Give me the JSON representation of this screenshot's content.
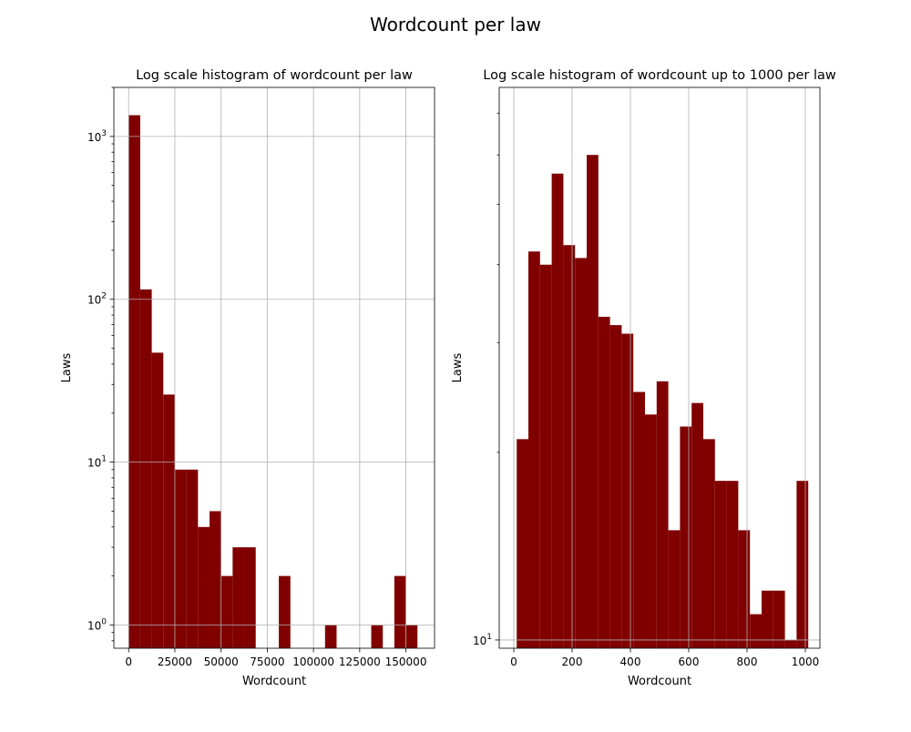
{
  "figure": {
    "title": "Wordcount per law"
  },
  "chart_data": [
    {
      "type": "bar",
      "title": "Log scale histogram of wordcount per law",
      "xlabel": "Wordcount",
      "ylabel": "Laws",
      "yscale": "log",
      "grid": true,
      "xlim": [
        -8000,
        165500
      ],
      "ylim": [
        0.72,
        2000
      ],
      "xticks": [
        0,
        25000,
        50000,
        75000,
        100000,
        125000,
        150000
      ],
      "xtick_labels": [
        "0",
        "25000",
        "50000",
        "75000",
        "100000",
        "125000",
        "150000"
      ],
      "yticks": [
        1,
        10,
        100,
        1000
      ],
      "ytick_labels": [
        "10^0",
        "10^1",
        "10^2",
        "10^3"
      ],
      "bin_edges": [
        0,
        6250,
        12500,
        18750,
        25000,
        31250,
        37500,
        43750,
        50000,
        56250,
        62500,
        68750,
        75000,
        81250,
        87500,
        93750,
        100000,
        106250,
        112500,
        118750,
        125000,
        131250,
        137500,
        143750,
        150000,
        156250
      ],
      "counts": [
        1350,
        115,
        47,
        26,
        9,
        9,
        4,
        5,
        2,
        3,
        3,
        0,
        0,
        2,
        0,
        0,
        0,
        1,
        0,
        0,
        0,
        1,
        0,
        2,
        1
      ]
    },
    {
      "type": "bar",
      "title": "Log scale histogram of wordcount up to 1000 per law",
      "xlabel": "Wordcount",
      "ylabel": "Laws",
      "yscale": "log",
      "grid": true,
      "xlim": [
        -50,
        1050
      ],
      "ylim": [
        9.7,
        77
      ],
      "xticks": [
        0,
        200,
        400,
        600,
        800,
        1000
      ],
      "xtick_labels": [
        "0",
        "200",
        "400",
        "600",
        "800",
        "1000"
      ],
      "yticks": [
        10
      ],
      "ytick_labels": [
        "10^1"
      ],
      "bin_edges": [
        10,
        50,
        90,
        130,
        170,
        210,
        250,
        290,
        330,
        370,
        410,
        450,
        490,
        530,
        570,
        610,
        650,
        690,
        730,
        770,
        810,
        850,
        890,
        930,
        970,
        1010
      ],
      "counts": [
        21,
        42,
        40,
        56,
        43,
        41,
        60,
        33,
        32,
        31,
        25,
        23,
        26,
        15,
        22,
        24,
        21,
        18,
        18,
        15,
        11,
        12,
        12,
        10,
        18
      ]
    }
  ]
}
